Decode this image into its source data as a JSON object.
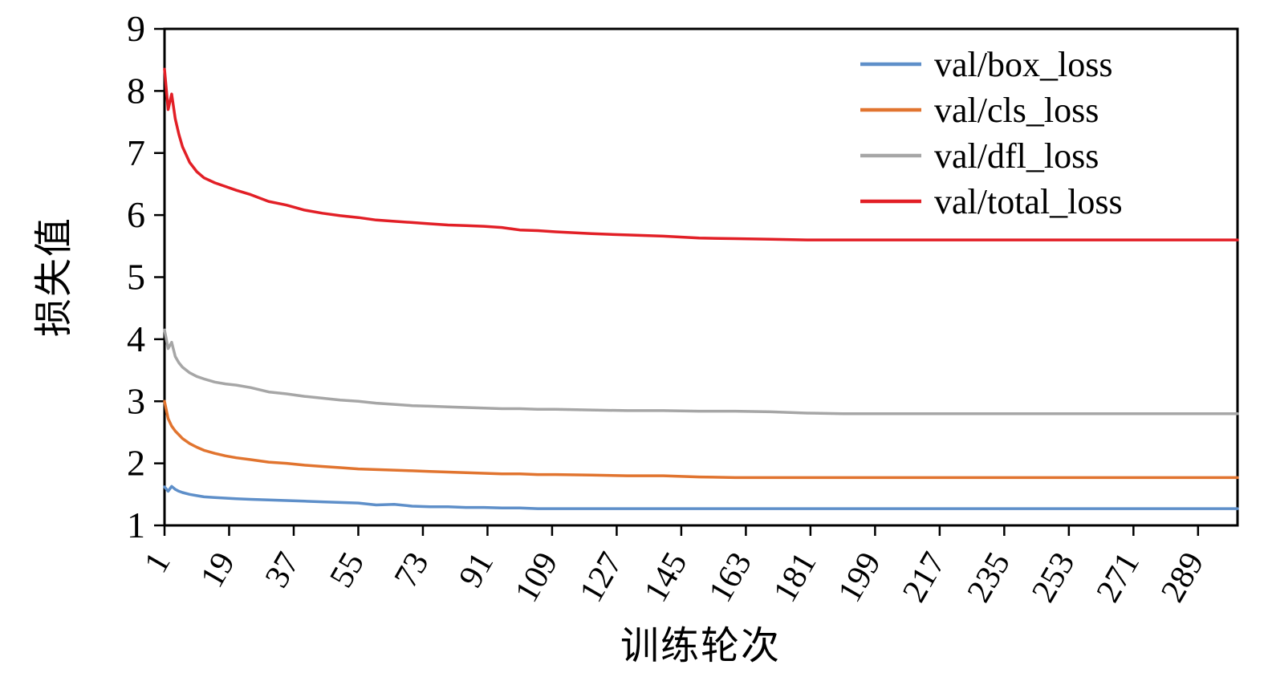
{
  "figure": {
    "background": "#ffffff",
    "axis_color": "#000000"
  },
  "chart_data": {
    "type": "line",
    "title": "",
    "xlabel": "训练轮次",
    "ylabel": "损失值",
    "xlim": [
      1,
      300
    ],
    "ylim": [
      1,
      9
    ],
    "xticks": [
      1,
      19,
      37,
      55,
      73,
      91,
      109,
      127,
      145,
      163,
      181,
      199,
      217,
      235,
      253,
      271,
      289
    ],
    "yticks": [
      1,
      2,
      3,
      4,
      5,
      6,
      7,
      8,
      9
    ],
    "grid": false,
    "legend_position": "top-right-inside",
    "x": [
      1,
      2,
      3,
      4,
      5,
      6,
      8,
      10,
      12,
      15,
      18,
      21,
      25,
      30,
      35,
      40,
      45,
      50,
      55,
      60,
      65,
      70,
      75,
      80,
      85,
      90,
      95,
      100,
      105,
      110,
      120,
      130,
      140,
      150,
      160,
      170,
      180,
      190,
      200,
      210,
      220,
      230,
      240,
      250,
      260,
      270,
      280,
      290,
      300
    ],
    "series": [
      {
        "name": "val/box_loss",
        "color": "#5e8fc9",
        "values": [
          1.62,
          1.55,
          1.63,
          1.58,
          1.55,
          1.53,
          1.5,
          1.48,
          1.46,
          1.45,
          1.44,
          1.43,
          1.42,
          1.41,
          1.4,
          1.39,
          1.38,
          1.37,
          1.36,
          1.33,
          1.34,
          1.31,
          1.3,
          1.3,
          1.29,
          1.29,
          1.28,
          1.28,
          1.27,
          1.27,
          1.27,
          1.27,
          1.27,
          1.27,
          1.27,
          1.27,
          1.27,
          1.27,
          1.27,
          1.27,
          1.27,
          1.27,
          1.27,
          1.27,
          1.27,
          1.27,
          1.27,
          1.27,
          1.27
        ]
      },
      {
        "name": "val/cls_loss",
        "color": "#e1742f",
        "values": [
          3.0,
          2.72,
          2.6,
          2.52,
          2.46,
          2.4,
          2.32,
          2.26,
          2.21,
          2.16,
          2.12,
          2.09,
          2.06,
          2.02,
          2.0,
          1.97,
          1.95,
          1.93,
          1.91,
          1.9,
          1.89,
          1.88,
          1.87,
          1.86,
          1.85,
          1.84,
          1.83,
          1.83,
          1.82,
          1.82,
          1.81,
          1.8,
          1.8,
          1.78,
          1.77,
          1.77,
          1.77,
          1.77,
          1.77,
          1.77,
          1.77,
          1.77,
          1.77,
          1.77,
          1.77,
          1.77,
          1.77,
          1.77,
          1.77
        ]
      },
      {
        "name": "val/dfl_loss",
        "color": "#a6a6a6",
        "values": [
          4.15,
          3.85,
          3.95,
          3.72,
          3.62,
          3.55,
          3.46,
          3.4,
          3.36,
          3.31,
          3.28,
          3.26,
          3.22,
          3.15,
          3.12,
          3.08,
          3.05,
          3.02,
          3.0,
          2.97,
          2.95,
          2.93,
          2.92,
          2.91,
          2.9,
          2.89,
          2.88,
          2.88,
          2.87,
          2.87,
          2.86,
          2.85,
          2.85,
          2.84,
          2.84,
          2.83,
          2.81,
          2.8,
          2.8,
          2.8,
          2.8,
          2.8,
          2.8,
          2.8,
          2.8,
          2.8,
          2.8,
          2.8,
          2.8
        ]
      },
      {
        "name": "val/total_loss",
        "color": "#e21f26",
        "values": [
          8.35,
          7.7,
          7.95,
          7.55,
          7.3,
          7.1,
          6.85,
          6.7,
          6.6,
          6.52,
          6.46,
          6.4,
          6.33,
          6.22,
          6.16,
          6.08,
          6.03,
          5.99,
          5.96,
          5.92,
          5.9,
          5.88,
          5.86,
          5.84,
          5.83,
          5.82,
          5.8,
          5.76,
          5.75,
          5.73,
          5.7,
          5.68,
          5.66,
          5.63,
          5.62,
          5.61,
          5.6,
          5.6,
          5.6,
          5.6,
          5.6,
          5.6,
          5.6,
          5.6,
          5.6,
          5.6,
          5.6,
          5.6,
          5.6
        ]
      }
    ]
  }
}
